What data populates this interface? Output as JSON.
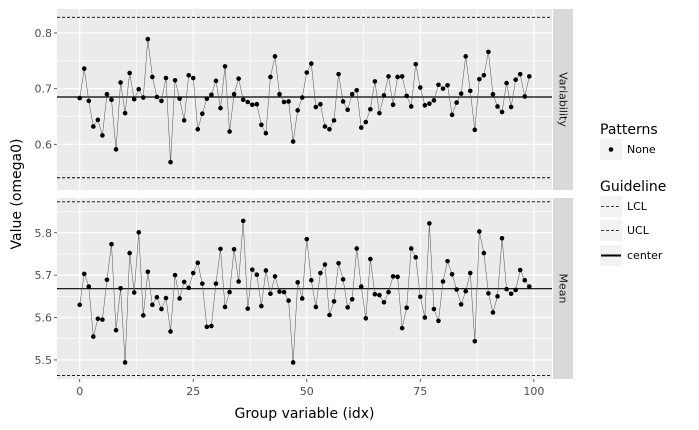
{
  "chart_data": {
    "type": "line",
    "xlabel": "Group variable (idx)",
    "ylabel": "Value (omega0)",
    "xlim": [
      -5,
      104
    ],
    "x_ticks": [
      0,
      25,
      50,
      75,
      100
    ],
    "x_tick_labels": [
      "0",
      "25",
      "50",
      "75",
      "100"
    ],
    "grid": true,
    "legend_position": "right",
    "legend": {
      "patterns_title": "Patterns",
      "patterns_entries": [
        "None"
      ],
      "guideline_title": "Guideline",
      "guideline_entries": [
        "LCL",
        "UCL",
        "center"
      ]
    },
    "panels": [
      {
        "name": "Variability",
        "ylim": [
          0.518,
          0.843
        ],
        "y_ticks": [
          0.6,
          0.7,
          0.8
        ],
        "y_tick_labels": [
          "0.6",
          "0.7",
          "0.8"
        ],
        "center": 0.685,
        "ucl": 0.828,
        "lcl": 0.54,
        "values": [
          0.683,
          0.736,
          0.678,
          0.632,
          0.644,
          0.616,
          0.69,
          0.68,
          0.591,
          0.711,
          0.656,
          0.728,
          0.681,
          0.699,
          0.684,
          0.789,
          0.721,
          0.685,
          0.678,
          0.719,
          0.568,
          0.715,
          0.682,
          0.643,
          0.724,
          0.719,
          0.627,
          0.655,
          0.682,
          0.689,
          0.714,
          0.665,
          0.74,
          0.623,
          0.69,
          0.718,
          0.68,
          0.676,
          0.671,
          0.672,
          0.635,
          0.62,
          0.721,
          0.758,
          0.69,
          0.676,
          0.677,
          0.605,
          0.661,
          0.684,
          0.729,
          0.745,
          0.667,
          0.672,
          0.632,
          0.627,
          0.643,
          0.726,
          0.677,
          0.662,
          0.69,
          0.697,
          0.63,
          0.64,
          0.663,
          0.713,
          0.656,
          0.688,
          0.722,
          0.671,
          0.721,
          0.722,
          0.687,
          0.668,
          0.744,
          0.702,
          0.67,
          0.673,
          0.679,
          0.707,
          0.7,
          0.706,
          0.653,
          0.675,
          0.691,
          0.758,
          0.696,
          0.626,
          0.717,
          0.724,
          0.766,
          0.69,
          0.668,
          0.658,
          0.71,
          0.667,
          0.716,
          0.726,
          0.686,
          0.722
        ]
      },
      {
        "name": "Mean",
        "ylim": [
          5.455,
          5.882
        ],
        "y_ticks": [
          5.5,
          5.6,
          5.7,
          5.8
        ],
        "y_tick_labels": [
          "5.5",
          "5.6",
          "5.7",
          "5.8"
        ],
        "center": 5.668,
        "ucl": 5.873,
        "lcl": 5.463,
        "values": [
          5.63,
          5.703,
          5.673,
          5.555,
          5.597,
          5.595,
          5.689,
          5.773,
          5.57,
          5.669,
          5.494,
          5.752,
          5.659,
          5.801,
          5.605,
          5.708,
          5.63,
          5.648,
          5.62,
          5.646,
          5.567,
          5.7,
          5.645,
          5.684,
          5.67,
          5.705,
          5.729,
          5.68,
          5.578,
          5.58,
          5.68,
          5.762,
          5.625,
          5.66,
          5.761,
          5.685,
          5.828,
          5.621,
          5.713,
          5.701,
          5.627,
          5.711,
          5.656,
          5.697,
          5.661,
          5.66,
          5.64,
          5.494,
          5.683,
          5.645,
          5.785,
          5.688,
          5.625,
          5.705,
          5.725,
          5.606,
          5.638,
          5.728,
          5.69,
          5.624,
          5.643,
          5.763,
          5.673,
          5.598,
          5.738,
          5.655,
          5.653,
          5.636,
          5.66,
          5.697,
          5.696,
          5.575,
          5.623,
          5.763,
          5.742,
          5.649,
          5.6,
          5.822,
          5.62,
          5.592,
          5.685,
          5.733,
          5.702,
          5.666,
          5.631,
          5.662,
          5.705,
          5.544,
          5.803,
          5.752,
          5.657,
          5.612,
          5.65,
          5.787,
          5.667,
          5.656,
          5.665,
          5.712,
          5.688,
          5.673
        ]
      }
    ]
  }
}
